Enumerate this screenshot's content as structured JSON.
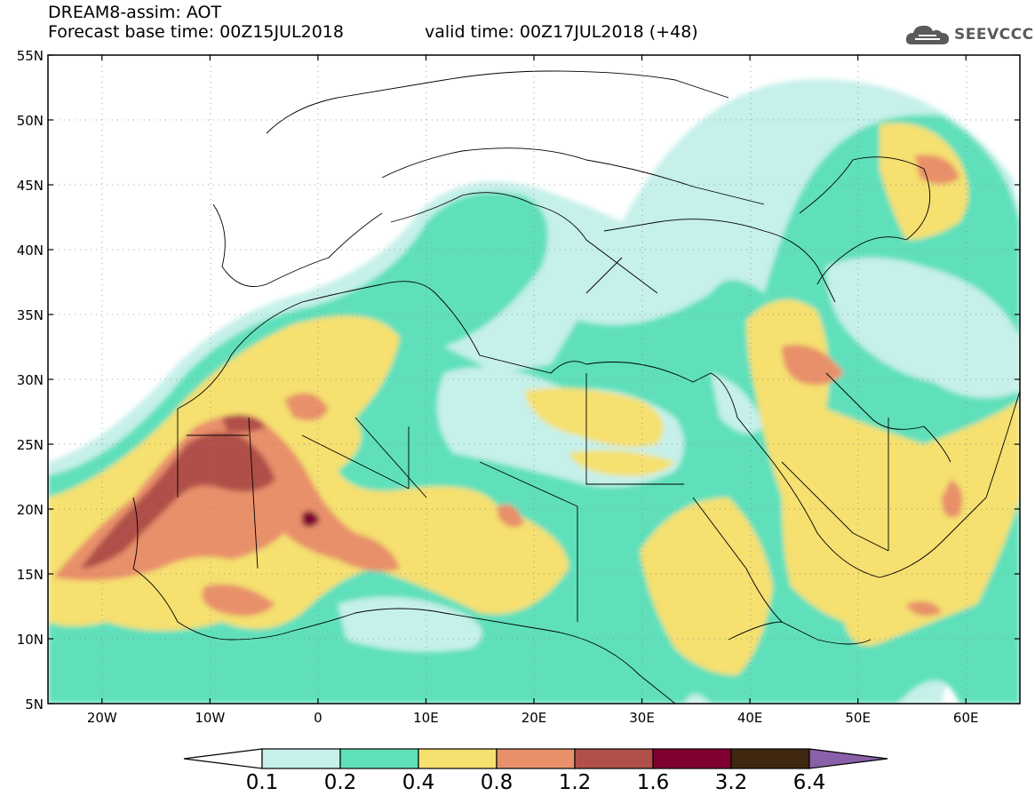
{
  "title": {
    "line1": "DREAM8-assim: AOT",
    "line2_base": "Forecast base time: 00Z15JUL2018",
    "line2_valid": "valid time: 00Z17JUL2018 (+48)"
  },
  "logo": {
    "text": "SEEVCCC",
    "icon": "cloud-logo-icon"
  },
  "axes": {
    "lat_labels": [
      "55N",
      "50N",
      "45N",
      "40N",
      "35N",
      "30N",
      "25N",
      "20N",
      "15N",
      "10N",
      "5N"
    ],
    "lon_labels": [
      "20W",
      "10W",
      "0",
      "10E",
      "20E",
      "30E",
      "40E",
      "50E",
      "60E"
    ],
    "lat_range": [
      5,
      55
    ],
    "lon_range": [
      -25,
      65
    ]
  },
  "colorbar": {
    "labels": [
      "0.1",
      "0.2",
      "0.4",
      "0.8",
      "1.2",
      "1.6",
      "3.2",
      "6.4"
    ],
    "colors": [
      "#c6f0ea",
      "#5fe0bb",
      "#f5e070",
      "#e8906a",
      "#b05048",
      "#800030",
      "#402810"
    ],
    "under_color": "#ffffff",
    "over_color": "#8a60a8"
  },
  "colors": {
    "ocean": "#ffffff",
    "border": "#000000",
    "grid": "#888888"
  }
}
